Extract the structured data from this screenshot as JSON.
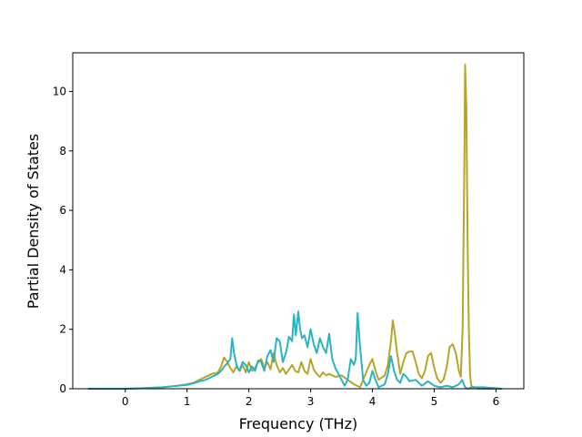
{
  "chart_data": {
    "type": "line",
    "title": "",
    "xlabel": "Frequency (THz)",
    "ylabel": "Partial Density of States",
    "xlim": [
      -0.85,
      6.45
    ],
    "ylim": [
      0,
      11.3
    ],
    "xticks": [
      0,
      1,
      2,
      3,
      4,
      5,
      6
    ],
    "yticks": [
      0,
      2,
      4,
      6,
      8,
      10
    ],
    "grid": false,
    "legend": "none",
    "series": [
      {
        "color": "#b8a42a",
        "x": [
          -0.6,
          0.0,
          0.3,
          0.6,
          0.8,
          1.0,
          1.1,
          1.2,
          1.3,
          1.4,
          1.5,
          1.55,
          1.6,
          1.65,
          1.7,
          1.75,
          1.8,
          1.85,
          1.9,
          1.95,
          2.0,
          2.05,
          2.1,
          2.15,
          2.2,
          2.25,
          2.3,
          2.35,
          2.4,
          2.45,
          2.5,
          2.55,
          2.6,
          2.65,
          2.7,
          2.75,
          2.8,
          2.85,
          2.9,
          2.95,
          3.0,
          3.05,
          3.1,
          3.15,
          3.2,
          3.25,
          3.3,
          3.35,
          3.4,
          3.5,
          3.6,
          3.7,
          3.8,
          3.85,
          3.9,
          3.95,
          4.0,
          4.05,
          4.1,
          4.2,
          4.25,
          4.3,
          4.33,
          4.36,
          4.4,
          4.45,
          4.5,
          4.55,
          4.6,
          4.65,
          4.7,
          4.75,
          4.8,
          4.85,
          4.9,
          4.95,
          5.0,
          5.05,
          5.1,
          5.15,
          5.2,
          5.25,
          5.3,
          5.35,
          5.4,
          5.43,
          5.46,
          5.49,
          5.5,
          5.52,
          5.54,
          5.56,
          5.58,
          5.6,
          5.7,
          6.1
        ],
        "values": [
          0.0,
          0.0,
          0.02,
          0.05,
          0.09,
          0.15,
          0.2,
          0.3,
          0.4,
          0.5,
          0.55,
          0.75,
          1.05,
          0.9,
          0.7,
          0.55,
          0.75,
          0.6,
          0.8,
          0.55,
          0.9,
          0.6,
          0.7,
          0.9,
          1.0,
          0.7,
          0.9,
          0.65,
          1.2,
          0.8,
          0.55,
          0.7,
          0.5,
          0.65,
          0.8,
          0.6,
          0.55,
          0.9,
          0.6,
          0.5,
          1.0,
          0.65,
          0.5,
          0.4,
          0.55,
          0.45,
          0.5,
          0.45,
          0.4,
          0.45,
          0.3,
          0.15,
          0.05,
          0.3,
          0.55,
          0.8,
          1.0,
          0.6,
          0.3,
          0.45,
          0.8,
          1.6,
          2.3,
          1.9,
          1.2,
          0.5,
          0.9,
          1.2,
          1.25,
          1.25,
          0.9,
          0.5,
          0.35,
          0.6,
          1.1,
          1.2,
          0.7,
          0.35,
          0.2,
          0.3,
          0.7,
          1.4,
          1.5,
          1.2,
          0.6,
          0.4,
          2.0,
          8.0,
          10.9,
          9.5,
          5.0,
          2.0,
          0.5,
          0.1,
          0.0,
          0.0
        ]
      },
      {
        "color": "#2ab3c2",
        "x": [
          -0.6,
          0.0,
          0.3,
          0.6,
          0.8,
          1.0,
          1.1,
          1.2,
          1.3,
          1.4,
          1.5,
          1.55,
          1.6,
          1.65,
          1.7,
          1.73,
          1.76,
          1.8,
          1.85,
          1.9,
          1.95,
          2.0,
          2.05,
          2.1,
          2.15,
          2.2,
          2.25,
          2.3,
          2.35,
          2.4,
          2.45,
          2.5,
          2.55,
          2.6,
          2.65,
          2.7,
          2.73,
          2.76,
          2.8,
          2.83,
          2.86,
          2.9,
          2.95,
          3.0,
          3.05,
          3.1,
          3.15,
          3.2,
          3.25,
          3.3,
          3.35,
          3.4,
          3.45,
          3.5,
          3.55,
          3.6,
          3.65,
          3.7,
          3.73,
          3.76,
          3.8,
          3.85,
          3.9,
          3.95,
          4.0,
          4.05,
          4.1,
          4.2,
          4.25,
          4.3,
          4.35,
          4.4,
          4.45,
          4.5,
          4.55,
          4.6,
          4.7,
          4.8,
          4.9,
          5.0,
          5.1,
          5.2,
          5.3,
          5.4,
          5.45,
          5.5,
          5.55,
          5.6,
          5.8,
          6.1
        ],
        "values": [
          0.0,
          0.0,
          0.02,
          0.05,
          0.09,
          0.13,
          0.18,
          0.25,
          0.3,
          0.4,
          0.5,
          0.6,
          0.75,
          0.85,
          1.0,
          1.7,
          1.2,
          0.8,
          0.6,
          0.9,
          0.8,
          0.55,
          0.75,
          0.6,
          0.95,
          0.9,
          0.6,
          1.1,
          1.3,
          0.9,
          1.7,
          1.6,
          0.9,
          1.2,
          1.75,
          1.6,
          2.5,
          1.8,
          2.6,
          2.0,
          1.7,
          1.8,
          1.4,
          2.0,
          1.5,
          1.2,
          1.7,
          1.4,
          1.2,
          1.85,
          1.0,
          0.7,
          0.5,
          0.3,
          0.1,
          0.3,
          1.0,
          0.8,
          1.0,
          2.55,
          1.4,
          0.3,
          0.1,
          0.2,
          0.6,
          0.3,
          0.05,
          0.15,
          0.5,
          1.1,
          0.6,
          0.3,
          0.2,
          0.5,
          0.4,
          0.25,
          0.3,
          0.1,
          0.25,
          0.1,
          0.05,
          0.1,
          0.05,
          0.15,
          0.3,
          0.05,
          0.0,
          0.05,
          0.05,
          0.0
        ]
      }
    ]
  }
}
